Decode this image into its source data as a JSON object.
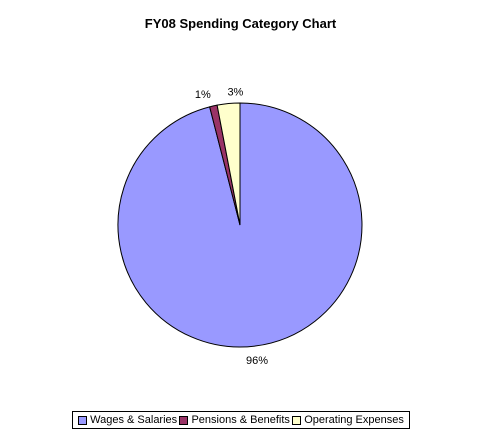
{
  "chart_data": {
    "type": "pie",
    "title": "FY08 Spending Category Chart",
    "categories": [
      "Wages & Salaries",
      "Pensions & Benefits",
      "Operating Expenses"
    ],
    "values": [
      96,
      1,
      3
    ],
    "data_labels": [
      "96%",
      "1%",
      "3%"
    ],
    "colors": [
      "#9999FF",
      "#993366",
      "#FFFFCC"
    ],
    "legend_position": "bottom"
  }
}
